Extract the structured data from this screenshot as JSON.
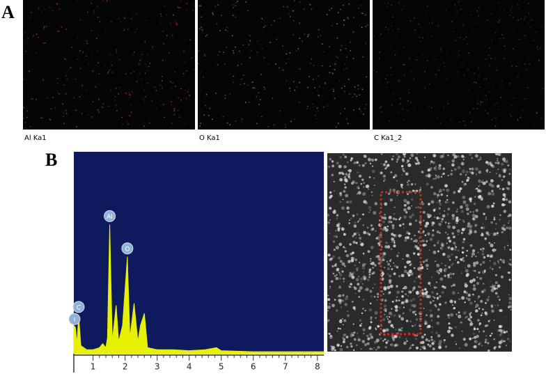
{
  "panel_a": {
    "label": "A",
    "maps": [
      {
        "label": "Al Ka1",
        "dot_color": "#c04040"
      },
      {
        "label": "O Ka1",
        "dot_color": "#40c040"
      },
      {
        "label": "C Ka1_2",
        "dot_color": "#306030"
      }
    ]
  },
  "panel_b": {
    "label": "B"
  },
  "chart_data": {
    "type": "area",
    "color": "#e6f000",
    "background": "#0f1a5e",
    "x": [
      0.4,
      0.45,
      0.5,
      0.55,
      0.62,
      0.8,
      1.0,
      1.2,
      1.3,
      1.4,
      1.45,
      1.52,
      1.6,
      1.72,
      1.8,
      1.92,
      2.07,
      2.15,
      2.28,
      2.4,
      2.48,
      2.6,
      2.7,
      3.0,
      3.5,
      4.0,
      4.5,
      4.85,
      5.0,
      6.0,
      7.0,
      8.0,
      8.2
    ],
    "values": [
      14,
      13,
      5,
      19,
      4,
      2,
      2,
      3,
      5,
      3,
      8,
      64,
      6,
      24,
      6,
      14,
      48,
      8,
      25,
      6,
      14,
      20,
      3,
      2,
      2,
      1.5,
      2,
      3,
      1.5,
      1,
      1,
      1,
      1
    ],
    "xlim": [
      0.4,
      8.2
    ],
    "ylim": [
      0,
      100
    ],
    "xticks": [
      1,
      2,
      3,
      4,
      5,
      6,
      7,
      8
    ],
    "peak_labels": [
      {
        "label": "I",
        "x": 0.42,
        "y": 13
      },
      {
        "label": "C",
        "x": 0.55,
        "y": 19
      },
      {
        "label": "Al",
        "x": 1.52,
        "y": 64
      },
      {
        "label": "O",
        "x": 2.07,
        "y": 48
      }
    ]
  }
}
